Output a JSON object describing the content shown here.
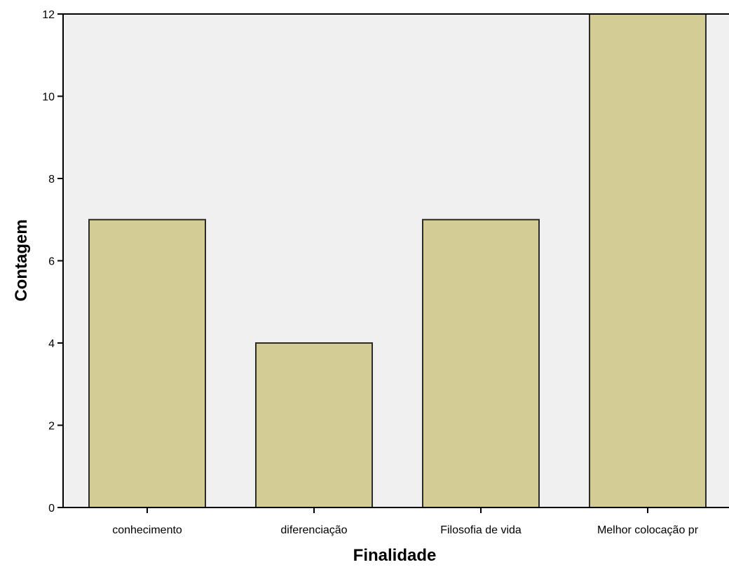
{
  "chart_data": {
    "type": "bar",
    "title": "",
    "xlabel": "Finalidade",
    "ylabel": "Contagem",
    "categories": [
      "conhecimento",
      "diferenciação",
      "Filosofia de vida",
      "Melhor colocação pr"
    ],
    "values": [
      7,
      4,
      7,
      12
    ],
    "ylim": [
      0,
      12
    ],
    "yticks": [
      0,
      2,
      4,
      6,
      8,
      10,
      12
    ],
    "grid": false,
    "legend": "none",
    "colors": {
      "bar_fill": "#D3CD95",
      "bar_stroke": "#2B2B2B",
      "plot_background": "#F0F0F0",
      "axis": "#000000"
    }
  }
}
